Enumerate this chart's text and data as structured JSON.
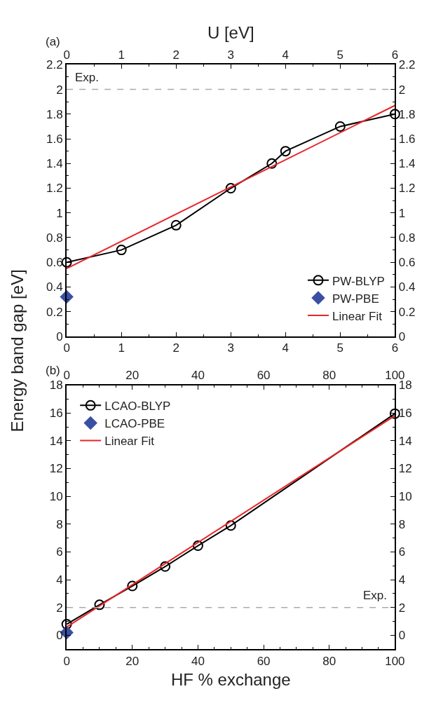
{
  "chart_data": [
    {
      "type": "line",
      "x2label": "U [eV]",
      "ylabel": "Energy band gap [eV]",
      "annotations": [
        "(a)"
      ],
      "xlim": [
        0,
        6
      ],
      "xticks": [
        0,
        1,
        2,
        3,
        4,
        5,
        6
      ],
      "x2lim": [
        0,
        6
      ],
      "x2ticks": [
        0,
        1,
        2,
        3,
        4,
        5,
        6
      ],
      "ylim": [
        0,
        2.2
      ],
      "yticks": [
        0,
        0.2,
        0.4,
        0.6,
        0.8,
        1,
        1.2,
        1.4,
        1.6,
        1.8,
        2,
        2.2
      ],
      "y2lim": [
        0,
        2.2
      ],
      "y2ticks": [
        0,
        0.2,
        0.4,
        0.6,
        0.8,
        1,
        1.2,
        1.4,
        1.6,
        1.8,
        2,
        2.2
      ],
      "legend": "bottom right",
      "ref_lines": [
        {
          "axis": "y",
          "value": 2,
          "label": "Exp.",
          "color": "#aaaaaa",
          "line_style": "dashed"
        }
      ],
      "series": [
        {
          "name": "PW-BLYP",
          "color": "#000000",
          "marker": "circle",
          "x": [
            0,
            1,
            2,
            3,
            3.75,
            4,
            5,
            6
          ],
          "values": [
            0.6,
            0.7,
            0.9,
            1.2,
            1.4,
            1.5,
            1.7,
            1.8
          ]
        },
        {
          "name": "PW-PBE",
          "type": "scatter",
          "color": "#3a4fa3",
          "marker": "diamond",
          "x": [
            0
          ],
          "values": [
            0.32
          ]
        },
        {
          "name": "Linear Fit",
          "color": "#e8262a",
          "marker": "none",
          "x": [
            0,
            6
          ],
          "values": [
            0.55,
            1.87
          ]
        }
      ]
    },
    {
      "type": "line",
      "xlabel": "HF % exchange",
      "annotations": [
        "(b)"
      ],
      "xlim": [
        0,
        100
      ],
      "xticks": [
        0,
        20,
        40,
        60,
        80,
        100
      ],
      "x2lim": [
        0,
        100
      ],
      "x2ticks": [
        0,
        20,
        40,
        60,
        80,
        100
      ],
      "ylim": [
        -1,
        18
      ],
      "yticks": [
        0,
        2,
        4,
        6,
        8,
        10,
        12,
        14,
        16,
        18
      ],
      "y2lim": [
        -1,
        18
      ],
      "y2ticks": [
        0,
        2,
        4,
        6,
        8,
        10,
        12,
        14,
        16,
        18
      ],
      "legend": "top left",
      "ref_lines": [
        {
          "axis": "y",
          "value": 2,
          "label": "Exp.",
          "color": "#aaaaaa",
          "line_style": "dashed"
        }
      ],
      "series": [
        {
          "name": "LCAO-BLYP",
          "color": "#000000",
          "marker": "circle",
          "x": [
            0,
            10,
            20,
            30,
            40,
            50,
            100
          ],
          "values": [
            0.8,
            2.2,
            3.55,
            4.95,
            6.45,
            7.9,
            15.95
          ]
        },
        {
          "name": "LCAO-PBE",
          "type": "scatter",
          "color": "#3a4fa3",
          "marker": "diamond",
          "x": [
            0
          ],
          "values": [
            0.2
          ]
        },
        {
          "name": "Linear Fit",
          "color": "#e8262a",
          "marker": "none",
          "x": [
            0,
            100
          ],
          "values": [
            0.6,
            15.8
          ]
        }
      ]
    }
  ]
}
